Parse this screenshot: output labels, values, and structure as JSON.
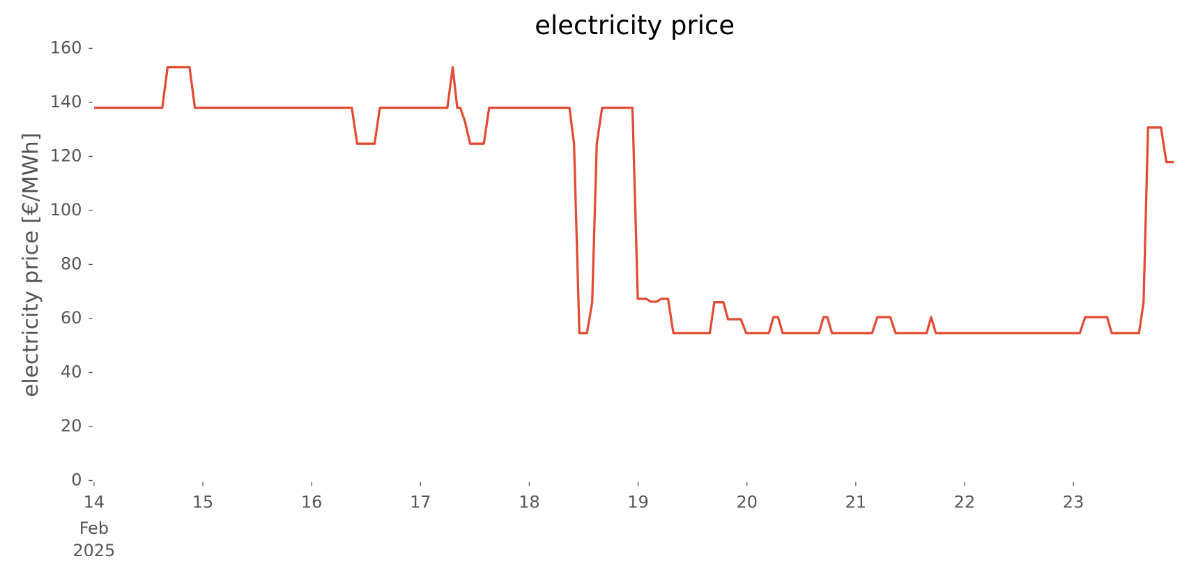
{
  "chart_data": {
    "type": "line",
    "title": "electricity price",
    "y_label": "electricity price [€/MWh]",
    "x_offset_labels": [
      "Feb",
      "2025"
    ],
    "x": [
      14.0,
      14.627,
      14.676,
      14.878,
      14.927,
      16.369,
      16.418,
      16.578,
      16.627,
      17.247,
      17.296,
      17.338,
      17.366,
      17.408,
      17.456,
      17.582,
      17.631,
      18.369,
      18.411,
      18.46,
      18.53,
      18.578,
      18.62,
      18.669,
      18.948,
      18.997,
      19.073,
      19.115,
      19.171,
      19.213,
      19.275,
      19.324,
      19.659,
      19.7,
      19.784,
      19.826,
      19.944,
      19.993,
      20.202,
      20.244,
      20.286,
      20.328,
      20.662,
      20.704,
      20.739,
      20.781,
      21.15,
      21.199,
      21.317,
      21.366,
      21.652,
      21.693,
      21.735,
      23.059,
      23.108,
      23.31,
      23.352,
      23.603,
      23.645,
      23.686,
      23.805,
      23.854,
      23.923
    ],
    "series": [
      {
        "name": "electricity price",
        "color": "#e24a33",
        "values": [
          138,
          138,
          153,
          153,
          138,
          138,
          124.7,
          124.7,
          138,
          138,
          153,
          138,
          138,
          133,
          124.7,
          124.7,
          138,
          138,
          124.7,
          54.6,
          54.6,
          66,
          124.7,
          138,
          138,
          67.3,
          67.3,
          66.2,
          66.2,
          67.3,
          67.3,
          54.6,
          54.6,
          66,
          66,
          59.7,
          59.7,
          54.6,
          54.6,
          60.5,
          60.5,
          54.6,
          54.6,
          60.5,
          60.5,
          54.6,
          54.6,
          60.5,
          60.5,
          54.6,
          54.6,
          60.5,
          54.6,
          54.6,
          60.5,
          60.5,
          54.6,
          54.6,
          66,
          130.7,
          130.7,
          117.9,
          117.9
        ]
      }
    ],
    "xlim": [
      14,
      23.923
    ],
    "xticks": [
      14,
      15,
      16,
      17,
      18,
      19,
      20,
      21,
      22,
      23
    ],
    "ylim": [
      0,
      160
    ],
    "yticks": [
      0,
      20,
      40,
      60,
      80,
      100,
      120,
      140,
      160
    ],
    "grid": false
  }
}
